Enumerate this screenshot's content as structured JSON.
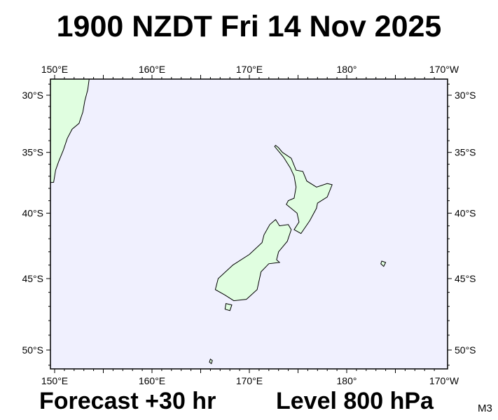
{
  "header": {
    "title": "1900 NZDT Fri 14 Nov 2025"
  },
  "footer": {
    "forecast": "Forecast +30 hr",
    "level": "Level 800 hPa",
    "code": "M3"
  },
  "map": {
    "projection": "mercator",
    "lon_range": [
      149.6,
      189.7
    ],
    "lat_range": [
      -28.6,
      -51.3
    ],
    "lon_ticks": [
      {
        "lon": 150,
        "label": "150°E"
      },
      {
        "lon": 160,
        "label": "160°E"
      },
      {
        "lon": 170,
        "label": "170°E"
      },
      {
        "lon": 180,
        "label": "180°"
      },
      {
        "lon": 190,
        "label": "170°W"
      }
    ],
    "lat_ticks": [
      {
        "lat": -30,
        "label": "30°S"
      },
      {
        "lat": -35,
        "label": "35°S"
      },
      {
        "lat": -40,
        "label": "40°S"
      },
      {
        "lat": -45,
        "label": "45°S"
      },
      {
        "lat": -50,
        "label": "50°S"
      }
    ],
    "colors": {
      "ocean": "#f0f0fe",
      "land": "#e0fee0",
      "coast": "#000000"
    }
  }
}
